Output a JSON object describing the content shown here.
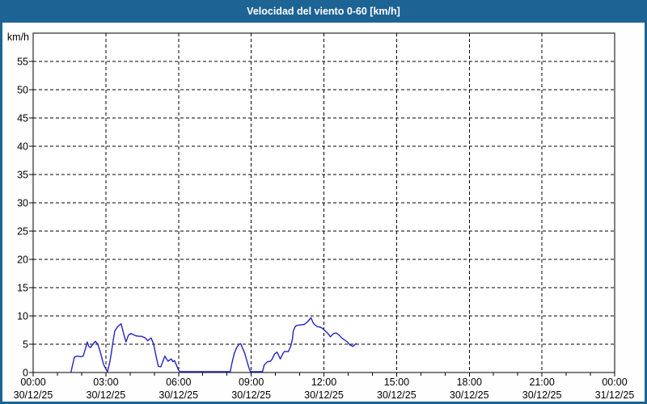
{
  "window": {
    "title": "Velocidad del viento 0-60 [km/h]"
  },
  "colors": {
    "accent": "#1d6394",
    "title_text": "#ffffff",
    "plot_bg": "#ffffff",
    "frame": "#000000",
    "grid": "#000000",
    "tick_text": "#000000",
    "line": "#2424be"
  },
  "chart_data": {
    "type": "line",
    "title": "Velocidad del viento 0-60 [km/h]",
    "unit_label": "km/h",
    "xlim_hours": [
      0,
      24
    ],
    "ylim": [
      0,
      60
    ],
    "grid": "dashed",
    "minor_x_tick_every_hours": 1,
    "x_ticks": [
      {
        "hour": 0,
        "time": "00:00",
        "date": "30/12/25"
      },
      {
        "hour": 3,
        "time": "03:00",
        "date": "30/12/25"
      },
      {
        "hour": 6,
        "time": "06:00",
        "date": "30/12/25"
      },
      {
        "hour": 9,
        "time": "09:00",
        "date": "30/12/25"
      },
      {
        "hour": 12,
        "time": "12:00",
        "date": "30/12/25"
      },
      {
        "hour": 15,
        "time": "15:00",
        "date": "30/12/25"
      },
      {
        "hour": 18,
        "time": "18:00",
        "date": "30/12/25"
      },
      {
        "hour": 21,
        "time": "21:00",
        "date": "30/12/25"
      },
      {
        "hour": 24,
        "time": "00:00",
        "date": "31/12/25"
      }
    ],
    "y_ticks": [
      0,
      5,
      10,
      15,
      20,
      25,
      30,
      35,
      40,
      45,
      50,
      55
    ],
    "series": [
      {
        "name": "Velocidad del viento",
        "color": "#2424be",
        "points_min_kmh": [
          [
            94,
            0
          ],
          [
            102,
            2.7
          ],
          [
            108,
            2.9
          ],
          [
            118,
            2.8
          ],
          [
            124,
            2.9
          ],
          [
            130,
            4.3
          ],
          [
            134,
            5.4
          ],
          [
            138,
            4.6
          ],
          [
            142,
            4.4
          ],
          [
            148,
            5.0
          ],
          [
            154,
            5.5
          ],
          [
            160,
            5.0
          ],
          [
            166,
            3.7
          ],
          [
            170,
            2.6
          ],
          [
            174,
            1.5
          ],
          [
            178,
            0.9
          ],
          [
            184,
            0
          ],
          [
            190,
            1.9
          ],
          [
            194,
            3.7
          ],
          [
            198,
            5.6
          ],
          [
            202,
            7.3
          ],
          [
            208,
            8.0
          ],
          [
            214,
            8.4
          ],
          [
            218,
            8.6
          ],
          [
            224,
            6.9
          ],
          [
            230,
            5.4
          ],
          [
            236,
            6.6
          ],
          [
            242,
            6.9
          ],
          [
            248,
            6.7
          ],
          [
            254,
            6.5
          ],
          [
            262,
            6.4
          ],
          [
            268,
            6.4
          ],
          [
            278,
            6.1
          ],
          [
            284,
            5.6
          ],
          [
            288,
            5.9
          ],
          [
            292,
            6.1
          ],
          [
            298,
            5.1
          ],
          [
            304,
            3.0
          ],
          [
            310,
            1.1
          ],
          [
            316,
            1.0
          ],
          [
            322,
            2.1
          ],
          [
            326,
            2.9
          ],
          [
            330,
            2.4
          ],
          [
            334,
            2.0
          ],
          [
            342,
            2.4
          ],
          [
            346,
            1.9
          ],
          [
            350,
            2.1
          ],
          [
            356,
            1.1
          ],
          [
            360,
            0.4
          ],
          [
            364,
            0
          ],
          [
            488,
            0
          ],
          [
            492,
            1.6
          ],
          [
            498,
            3.4
          ],
          [
            504,
            4.4
          ],
          [
            510,
            5.0
          ],
          [
            514,
            5.1
          ],
          [
            518,
            4.4
          ],
          [
            524,
            3.4
          ],
          [
            528,
            2.4
          ],
          [
            534,
            0.9
          ],
          [
            538,
            0
          ],
          [
            568,
            0
          ],
          [
            572,
            1.3
          ],
          [
            576,
            1.6
          ],
          [
            580,
            1.9
          ],
          [
            588,
            2.0
          ],
          [
            592,
            2.4
          ],
          [
            598,
            3.3
          ],
          [
            604,
            3.6
          ],
          [
            612,
            2.4
          ],
          [
            618,
            3.3
          ],
          [
            622,
            3.7
          ],
          [
            632,
            3.7
          ],
          [
            638,
            4.7
          ],
          [
            642,
            5.9
          ],
          [
            644,
            7.3
          ],
          [
            648,
            8.0
          ],
          [
            652,
            8.3
          ],
          [
            660,
            8.4
          ],
          [
            672,
            8.5
          ],
          [
            680,
            9.0
          ],
          [
            686,
            9.5
          ],
          [
            688,
            9.7
          ],
          [
            694,
            8.7
          ],
          [
            698,
            8.4
          ],
          [
            704,
            8.1
          ],
          [
            712,
            8.0
          ],
          [
            718,
            7.7
          ],
          [
            724,
            7.3
          ],
          [
            730,
            6.9
          ],
          [
            736,
            6.3
          ],
          [
            744,
            6.9
          ],
          [
            750,
            7.0
          ],
          [
            758,
            6.6
          ],
          [
            764,
            6.1
          ],
          [
            772,
            5.7
          ],
          [
            778,
            5.4
          ],
          [
            784,
            4.9
          ],
          [
            792,
            4.6
          ],
          [
            798,
            5.0
          ],
          [
            800,
            5.1
          ]
        ]
      }
    ]
  }
}
